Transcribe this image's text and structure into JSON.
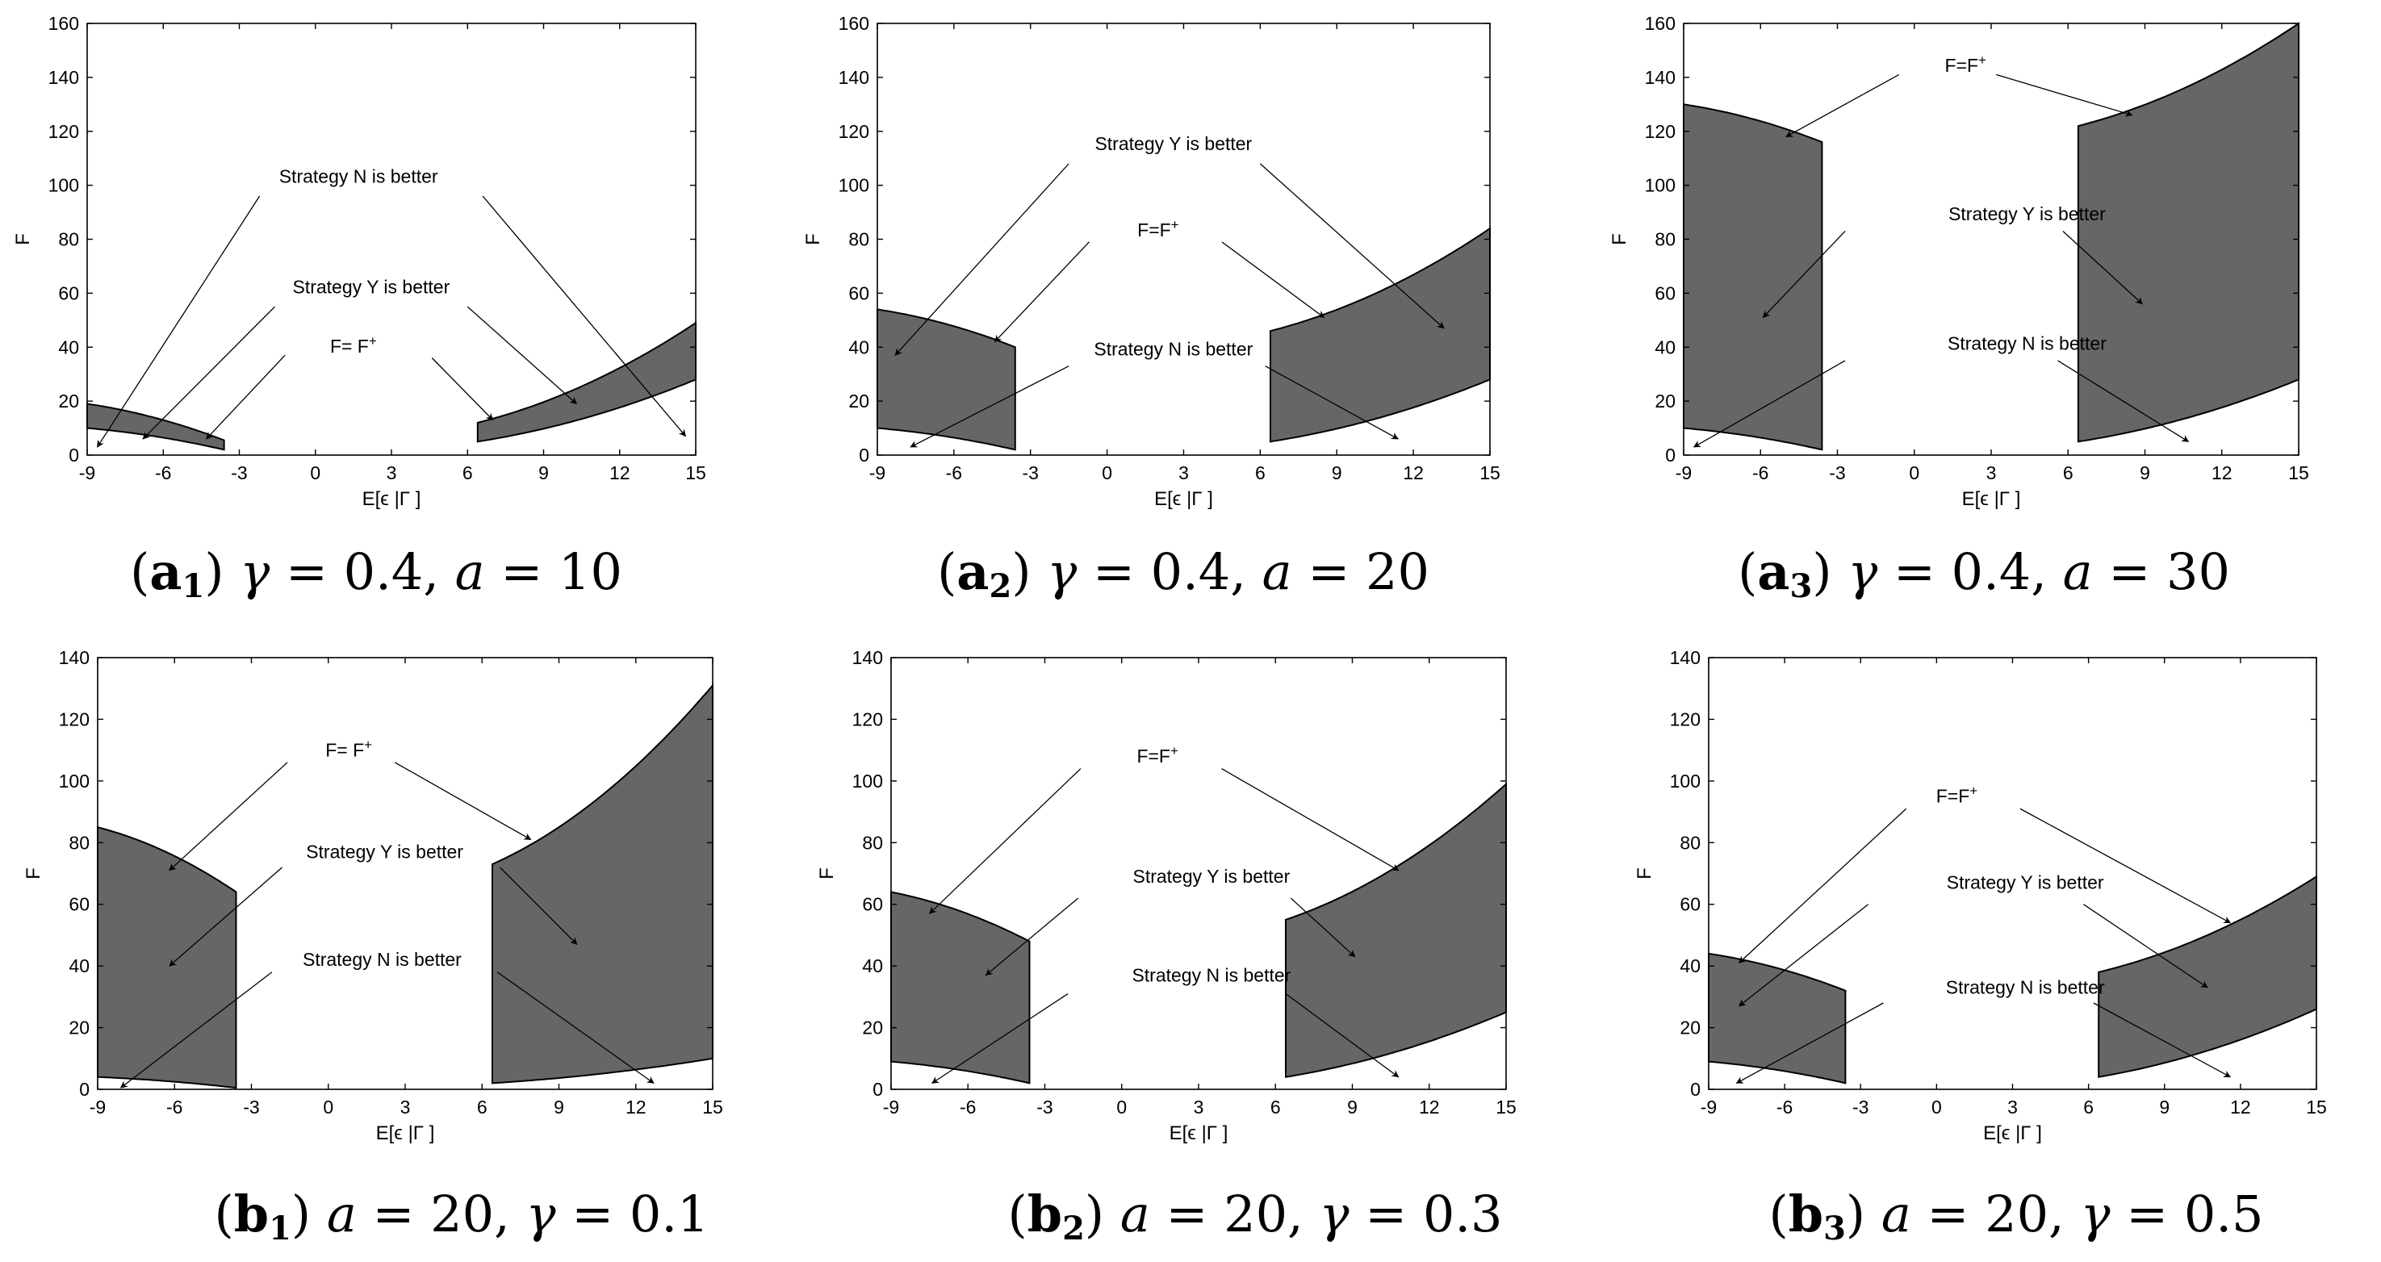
{
  "chart_data": [
    {
      "id": "a1",
      "type": "area",
      "caption": {
        "letter": "a",
        "sub": "1",
        "p1_name": "γ",
        "p1_value": "0.4",
        "p2_name": "a",
        "p2_value": "10"
      },
      "xlabel": "E[ϵ |Γ ]",
      "ylabel": "F",
      "xlim": [
        -9,
        15
      ],
      "ylim": [
        0,
        160
      ],
      "xticks": [
        "-9",
        "-6",
        "-3",
        "0",
        "3",
        "6",
        "9",
        "12",
        "15"
      ],
      "yticks": [
        "0",
        "20",
        "40",
        "60",
        "80",
        "100",
        "120",
        "140",
        "160"
      ],
      "regions": [
        {
          "x0": -9,
          "x1": -3.6,
          "upper": [
            19,
            5.5
          ],
          "lower": [
            10,
            2
          ]
        },
        {
          "x0": 6.4,
          "x1": 15,
          "upper": [
            12,
            49
          ],
          "lower": [
            5,
            28
          ]
        }
      ],
      "labels": [
        {
          "text": "Strategy N is better",
          "x": 1.7,
          "y": 101
        },
        {
          "text": "Strategy Y is better",
          "x": 2.2,
          "y": 60
        },
        {
          "text": "F= F",
          "sup": "+",
          "x": 1.5,
          "y": 38
        }
      ],
      "arrows": [
        {
          "from": [
            -2.2,
            96
          ],
          "to": [
            -8.6,
            3
          ]
        },
        {
          "from": [
            6.6,
            96
          ],
          "to": [
            14.6,
            7
          ]
        },
        {
          "from": [
            -1.6,
            55
          ],
          "to": [
            -6.8,
            6
          ]
        },
        {
          "from": [
            6,
            55
          ],
          "to": [
            10.3,
            19
          ]
        },
        {
          "from": [
            -1.2,
            37
          ],
          "to": [
            -4.3,
            6
          ]
        },
        {
          "from": [
            4.6,
            36
          ],
          "to": [
            7,
            13
          ]
        }
      ]
    },
    {
      "id": "a2",
      "type": "area",
      "caption": {
        "letter": "a",
        "sub": "2",
        "p1_name": "γ",
        "p1_value": "0.4",
        "p2_name": "a",
        "p2_value": "20"
      },
      "xlabel": "E[ϵ |Γ ]",
      "ylabel": "F",
      "xlim": [
        -9,
        15
      ],
      "ylim": [
        0,
        160
      ],
      "xticks": [
        "-9",
        "-6",
        "-3",
        "0",
        "3",
        "6",
        "9",
        "12",
        "15"
      ],
      "yticks": [
        "0",
        "20",
        "40",
        "60",
        "80",
        "100",
        "120",
        "140",
        "160"
      ],
      "regions": [
        {
          "x0": -9,
          "x1": -3.6,
          "upper": [
            54,
            40
          ],
          "lower": [
            10,
            2
          ]
        },
        {
          "x0": 6.4,
          "x1": 15,
          "upper": [
            46,
            84
          ],
          "lower": [
            5,
            28
          ]
        }
      ],
      "labels": [
        {
          "text": "Strategy Y is better",
          "x": 2.6,
          "y": 113
        },
        {
          "text": "F=F",
          "sup": "+",
          "x": 2.0,
          "y": 81
        },
        {
          "text": "Strategy N is better",
          "x": 2.6,
          "y": 37
        }
      ],
      "arrows": [
        {
          "from": [
            -1.5,
            108
          ],
          "to": [
            -8.3,
            37
          ]
        },
        {
          "from": [
            6,
            108
          ],
          "to": [
            13.2,
            47
          ]
        },
        {
          "from": [
            -0.7,
            79
          ],
          "to": [
            -4.4,
            42
          ]
        },
        {
          "from": [
            4.5,
            79
          ],
          "to": [
            8.5,
            51
          ]
        },
        {
          "from": [
            -1.5,
            33
          ],
          "to": [
            -7.7,
            3
          ]
        },
        {
          "from": [
            6.2,
            33
          ],
          "to": [
            11.4,
            6
          ]
        }
      ]
    },
    {
      "id": "a3",
      "type": "area",
      "caption": {
        "letter": "a",
        "sub": "3",
        "p1_name": "γ",
        "p1_value": "0.4",
        "p2_name": "a",
        "p2_value": "30"
      },
      "xlabel": "E[ϵ |Γ ]",
      "ylabel": "F",
      "xlim": [
        -9,
        15
      ],
      "ylim": [
        0,
        160
      ],
      "xticks": [
        "-9",
        "-6",
        "-3",
        "0",
        "3",
        "6",
        "9",
        "12",
        "15"
      ],
      "yticks": [
        "0",
        "20",
        "40",
        "60",
        "80",
        "100",
        "120",
        "140",
        "160"
      ],
      "regions": [
        {
          "x0": -9,
          "x1": -3.6,
          "upper": [
            130,
            116
          ],
          "lower": [
            10,
            2
          ]
        },
        {
          "x0": 6.4,
          "x1": 15,
          "upper": [
            122,
            160
          ],
          "lower": [
            5,
            28
          ]
        }
      ],
      "labels": [
        {
          "text": "F=F",
          "sup": "+",
          "x": 2.0,
          "y": 142
        },
        {
          "text": "Strategy Y is better",
          "x": 4.4,
          "y": 87
        },
        {
          "text": "Strategy N is better",
          "x": 4.4,
          "y": 39
        }
      ],
      "arrows": [
        {
          "from": [
            -0.6,
            141
          ],
          "to": [
            -5,
            118
          ]
        },
        {
          "from": [
            3.2,
            141
          ],
          "to": [
            8.5,
            126
          ]
        },
        {
          "from": [
            -2.7,
            83
          ],
          "to": [
            -5.9,
            51
          ]
        },
        {
          "from": [
            5.8,
            83
          ],
          "to": [
            8.9,
            56
          ]
        },
        {
          "from": [
            -2.7,
            35
          ],
          "to": [
            -8.6,
            3
          ]
        },
        {
          "from": [
            5.6,
            35
          ],
          "to": [
            10.7,
            5
          ]
        }
      ]
    },
    {
      "id": "b1",
      "type": "area",
      "caption": {
        "letter": "b",
        "sub": "1",
        "p1_name": "a",
        "p1_value": "20",
        "p2_name": "γ",
        "p2_value": "0.1"
      },
      "xlabel": "E[ϵ |Γ ]",
      "ylabel": "F",
      "xlim": [
        -9,
        15
      ],
      "ylim": [
        0,
        140
      ],
      "xticks": [
        "-9",
        "-6",
        "-3",
        "0",
        "3",
        "6",
        "9",
        "12",
        "15"
      ],
      "yticks": [
        "0",
        "20",
        "40",
        "60",
        "80",
        "100",
        "120",
        "140"
      ],
      "regions": [
        {
          "x0": -9,
          "x1": -3.6,
          "upper": [
            85,
            64
          ],
          "lower": [
            4,
            0.5
          ]
        },
        {
          "x0": 6.4,
          "x1": 15,
          "upper": [
            73,
            131
          ],
          "lower": [
            2,
            10
          ]
        }
      ],
      "labels": [
        {
          "text": "F= F",
          "sup": "+",
          "x": 0.8,
          "y": 108
        },
        {
          "text": "Strategy Y is better",
          "x": 2.2,
          "y": 75
        },
        {
          "text": "Strategy N is better",
          "x": 2.1,
          "y": 40
        }
      ],
      "arrows": [
        {
          "from": [
            -1.6,
            106
          ],
          "to": [
            -6.2,
            71
          ]
        },
        {
          "from": [
            2.6,
            106
          ],
          "to": [
            7.9,
            81
          ]
        },
        {
          "from": [
            -1.8,
            72
          ],
          "to": [
            -6.2,
            40
          ]
        },
        {
          "from": [
            6.7,
            72
          ],
          "to": [
            9.7,
            47
          ]
        },
        {
          "from": [
            -2.2,
            38
          ],
          "to": [
            -8.1,
            0.5
          ]
        },
        {
          "from": [
            6.6,
            38
          ],
          "to": [
            12.7,
            2
          ]
        }
      ]
    },
    {
      "id": "b2",
      "type": "area",
      "caption": {
        "letter": "b",
        "sub": "2",
        "p1_name": "a",
        "p1_value": "20",
        "p2_name": "γ",
        "p2_value": "0.3"
      },
      "xlabel": "E[ϵ |Γ ]",
      "ylabel": "F",
      "xlim": [
        -9,
        15
      ],
      "ylim": [
        0,
        140
      ],
      "xticks": [
        "-9",
        "-6",
        "-3",
        "0",
        "3",
        "6",
        "9",
        "12",
        "15"
      ],
      "yticks": [
        "0",
        "20",
        "40",
        "60",
        "80",
        "100",
        "120",
        "140"
      ],
      "regions": [
        {
          "x0": -9,
          "x1": -3.6,
          "upper": [
            64,
            48
          ],
          "lower": [
            9,
            2
          ]
        },
        {
          "x0": 6.4,
          "x1": 15,
          "upper": [
            55,
            99
          ],
          "lower": [
            4,
            25
          ]
        }
      ],
      "labels": [
        {
          "text": "F=F",
          "sup": "+",
          "x": 1.4,
          "y": 106
        },
        {
          "text": "Strategy Y is better",
          "x": 3.5,
          "y": 67
        },
        {
          "text": "Strategy N is better",
          "x": 3.5,
          "y": 35
        }
      ],
      "arrows": [
        {
          "from": [
            -1.6,
            104
          ],
          "to": [
            -7.5,
            57
          ]
        },
        {
          "from": [
            3.9,
            104
          ],
          "to": [
            10.8,
            71
          ]
        },
        {
          "from": [
            -1.7,
            62
          ],
          "to": [
            -5.3,
            37
          ]
        },
        {
          "from": [
            6.6,
            62
          ],
          "to": [
            9.1,
            43
          ]
        },
        {
          "from": [
            -2.1,
            31
          ],
          "to": [
            -7.4,
            2
          ]
        },
        {
          "from": [
            6.4,
            31
          ],
          "to": [
            10.8,
            4
          ]
        }
      ]
    },
    {
      "id": "b3",
      "type": "area",
      "caption": {
        "letter": "b",
        "sub": "3",
        "p1_name": "a",
        "p1_value": "20",
        "p2_name": "γ",
        "p2_value": "0.5"
      },
      "xlabel": "E[ϵ |Γ ]",
      "ylabel": "F",
      "xlim": [
        -9,
        15
      ],
      "ylim": [
        0,
        140
      ],
      "xticks": [
        "-9",
        "-6",
        "-3",
        "0",
        "3",
        "6",
        "9",
        "12",
        "15"
      ],
      "yticks": [
        "0",
        "20",
        "40",
        "60",
        "80",
        "100",
        "120",
        "140"
      ],
      "regions": [
        {
          "x0": -9,
          "x1": -3.6,
          "upper": [
            44,
            32
          ],
          "lower": [
            9,
            2
          ]
        },
        {
          "x0": 6.4,
          "x1": 15,
          "upper": [
            38,
            69
          ],
          "lower": [
            4,
            26
          ]
        }
      ],
      "labels": [
        {
          "text": "F=F",
          "sup": "+",
          "x": 0.8,
          "y": 93
        },
        {
          "text": "Strategy Y is better",
          "x": 3.5,
          "y": 65
        },
        {
          "text": "Strategy N is better",
          "x": 3.5,
          "y": 31
        }
      ],
      "arrows": [
        {
          "from": [
            -1.2,
            91
          ],
          "to": [
            -7.8,
            41
          ]
        },
        {
          "from": [
            3.3,
            91
          ],
          "to": [
            11.6,
            54
          ]
        },
        {
          "from": [
            -2.7,
            60
          ],
          "to": [
            -7.8,
            27
          ]
        },
        {
          "from": [
            5.8,
            60
          ],
          "to": [
            10.7,
            33
          ]
        },
        {
          "from": [
            -2.1,
            28
          ],
          "to": [
            -7.9,
            2
          ]
        },
        {
          "from": [
            6.2,
            28
          ],
          "to": [
            11.6,
            4
          ]
        }
      ]
    }
  ]
}
